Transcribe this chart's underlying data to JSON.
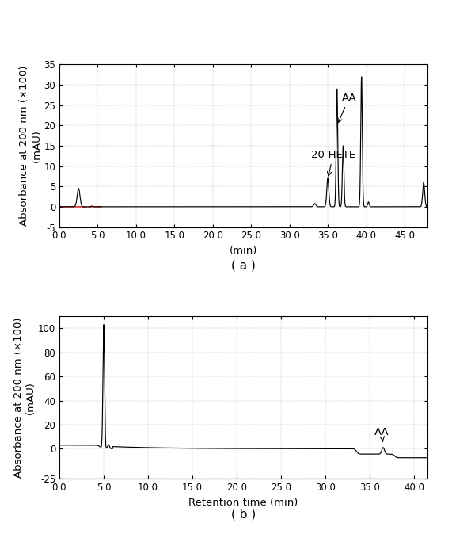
{
  "panel_a": {
    "xlim": [
      0,
      48
    ],
    "ylim": [
      -5,
      35
    ],
    "xticks": [
      0.0,
      5.0,
      10.0,
      15.0,
      20.0,
      25.0,
      30.0,
      35.0,
      40.0,
      45.0
    ],
    "yticks": [
      -5,
      0,
      5,
      10,
      15,
      20,
      25,
      30,
      35
    ],
    "xlabel": "(min)",
    "ylabel": "Absorbance at 200 nm (×100)\n(mAU)",
    "label": "( a )"
  },
  "panel_b": {
    "xlim": [
      0,
      41.5
    ],
    "ylim": [
      -25,
      110
    ],
    "xticks": [
      0.0,
      5.0,
      10.0,
      15.0,
      20.0,
      25.0,
      30.0,
      35.0,
      40.0
    ],
    "yticks": [
      -25,
      0,
      20,
      40,
      60,
      80,
      100
    ],
    "xlabel": "Retention time (min)",
    "ylabel": "Absorbance at 200 nm (×100)\n(mAU)",
    "label": "( b )"
  },
  "line_color": "#000000",
  "red_color": "#cc0000",
  "bg_color": "#ffffff",
  "grid_color": "#888888",
  "tick_fontsize": 8.5,
  "label_fontsize": 9.5
}
